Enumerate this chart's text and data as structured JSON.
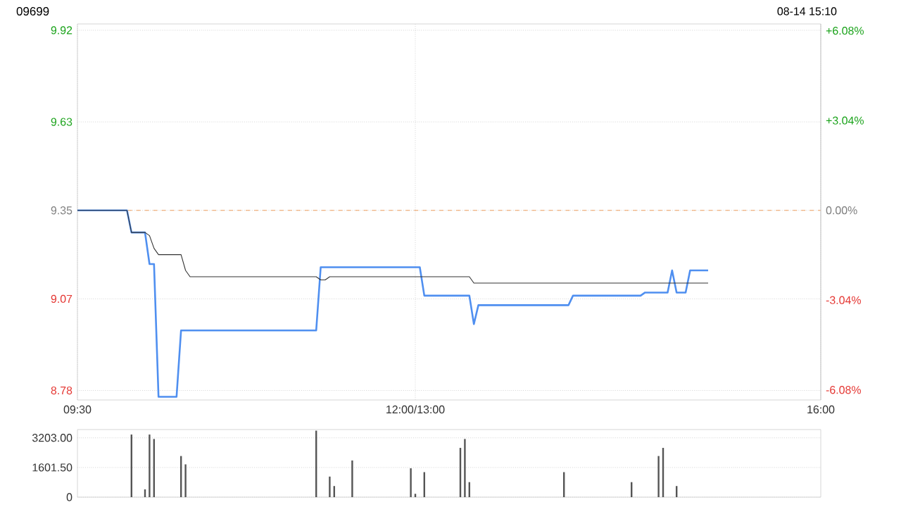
{
  "chart_data": [
    {
      "type": "line",
      "title": "09699",
      "subtitle": "08-14 15:10",
      "categories": [
        "09:30",
        null,
        null,
        null,
        null,
        null,
        null,
        null,
        null,
        null,
        null,
        null,
        null,
        null,
        null,
        null,
        null,
        null,
        null,
        null,
        null,
        null,
        null,
        null,
        null,
        null,
        null,
        null,
        null,
        null,
        null,
        null,
        null,
        null,
        null,
        null,
        null,
        null,
        null,
        null,
        null,
        null,
        null,
        null,
        null,
        null,
        null,
        null,
        null,
        null,
        null,
        null,
        null,
        null,
        null,
        null,
        null,
        null,
        null,
        null,
        null,
        null,
        null,
        null,
        null,
        null,
        null,
        null,
        null,
        null,
        null,
        null,
        null,
        null,
        null,
        "12:00/13:00",
        null,
        null,
        null,
        null,
        null,
        null,
        null,
        null,
        null,
        null,
        null,
        null,
        null,
        null,
        null,
        null,
        null,
        null,
        null,
        null,
        null,
        null,
        null,
        null,
        null,
        null,
        null,
        null,
        null,
        null,
        null,
        null,
        null,
        null,
        null,
        null,
        null,
        null,
        null,
        null,
        null,
        null,
        null,
        null,
        null,
        null,
        null,
        null,
        null,
        null,
        null,
        null,
        null,
        null,
        null,
        null,
        null,
        null,
        null,
        null,
        null,
        null,
        null,
        null,
        null,
        null,
        null,
        null,
        null,
        null,
        null,
        null,
        null,
        null,
        null,
        null,
        null,
        null,
        null,
        null,
        null,
        null,
        null,
        null,
        null,
        null,
        null,
        null,
        null,
        "16:00"
      ],
      "ylim": [
        8.75,
        9.94
      ],
      "yticks": [
        9.92,
        9.63,
        9.35,
        9.07,
        8.78
      ],
      "y2lim": [
        -6.42,
        6.31
      ],
      "y2ticks": [
        {
          "value": 6.08,
          "label": "+6.08%"
        },
        {
          "value": 3.04,
          "label": "+3.04%"
        },
        {
          "value": 0,
          "label": "0.00%"
        },
        {
          "value": -3.04,
          "label": "-3.04%"
        },
        {
          "value": -6.08,
          "label": "-6.08%"
        }
      ],
      "grid": true,
      "ref_lines": [
        {
          "axis": "y",
          "value": 9.35,
          "color": "#f0a060",
          "line_style": "dashed"
        }
      ],
      "series": [
        {
          "type": "line",
          "color": "#4f8ff0",
          "values": [
            9.35,
            9.35,
            9.35,
            9.35,
            9.35,
            9.35,
            9.35,
            9.35,
            9.35,
            9.35,
            9.35,
            9.35,
            9.28,
            9.28,
            9.28,
            9.28,
            9.18,
            9.18,
            8.76,
            8.76,
            8.76,
            8.76,
            8.76,
            8.97,
            8.97,
            8.97,
            8.97,
            8.97,
            8.97,
            8.97,
            8.97,
            8.97,
            8.97,
            8.97,
            8.97,
            8.97,
            8.97,
            8.97,
            8.97,
            8.97,
            8.97,
            8.97,
            8.97,
            8.97,
            8.97,
            8.97,
            8.97,
            8.97,
            8.97,
            8.97,
            8.97,
            8.97,
            8.97,
            8.97,
            9.17,
            9.17,
            9.17,
            9.17,
            9.17,
            9.17,
            9.17,
            9.17,
            9.17,
            9.17,
            9.17,
            9.17,
            9.17,
            9.17,
            9.17,
            9.17,
            9.17,
            9.17,
            9.17,
            9.17,
            9.17,
            9.17,
            9.17,
            9.08,
            9.08,
            9.08,
            9.08,
            9.08,
            9.08,
            9.08,
            9.08,
            9.08,
            9.08,
            9.08,
            8.99,
            9.05,
            9.05,
            9.05,
            9.05,
            9.05,
            9.05,
            9.05,
            9.05,
            9.05,
            9.05,
            9.05,
            9.05,
            9.05,
            9.05,
            9.05,
            9.05,
            9.05,
            9.05,
            9.05,
            9.05,
            9.05,
            9.08,
            9.08,
            9.08,
            9.08,
            9.08,
            9.08,
            9.08,
            9.08,
            9.08,
            9.08,
            9.08,
            9.08,
            9.08,
            9.08,
            9.08,
            9.08,
            9.09,
            9.09,
            9.09,
            9.09,
            9.09,
            9.09,
            9.16,
            9.09,
            9.09,
            9.09,
            9.16,
            9.16,
            9.16,
            9.16,
            9.16,
            null,
            null,
            null,
            null,
            null,
            null,
            null,
            null,
            null,
            null,
            null,
            null,
            null,
            null,
            null,
            null,
            null,
            null,
            null,
            null,
            null,
            null,
            null,
            null,
            null
          ]
        },
        {
          "type": "line",
          "color": "#333333",
          "values": [
            9.35,
            9.35,
            9.35,
            9.35,
            9.35,
            9.35,
            9.35,
            9.35,
            9.35,
            9.35,
            9.35,
            9.35,
            9.28,
            9.28,
            9.28,
            9.28,
            9.27,
            9.23,
            9.21,
            9.21,
            9.21,
            9.21,
            9.21,
            9.21,
            9.16,
            9.14,
            9.14,
            9.14,
            9.14,
            9.14,
            9.14,
            9.14,
            9.14,
            9.14,
            9.14,
            9.14,
            9.14,
            9.14,
            9.14,
            9.14,
            9.14,
            9.14,
            9.14,
            9.14,
            9.14,
            9.14,
            9.14,
            9.14,
            9.14,
            9.14,
            9.14,
            9.14,
            9.14,
            9.14,
            9.13,
            9.13,
            9.14,
            9.14,
            9.14,
            9.14,
            9.14,
            9.14,
            9.14,
            9.14,
            9.14,
            9.14,
            9.14,
            9.14,
            9.14,
            9.14,
            9.14,
            9.14,
            9.14,
            9.14,
            9.14,
            9.14,
            9.14,
            9.14,
            9.14,
            9.14,
            9.14,
            9.14,
            9.14,
            9.14,
            9.14,
            9.14,
            9.14,
            9.14,
            9.12,
            9.12,
            9.12,
            9.12,
            9.12,
            9.12,
            9.12,
            9.12,
            9.12,
            9.12,
            9.12,
            9.12,
            9.12,
            9.12,
            9.12,
            9.12,
            9.12,
            9.12,
            9.12,
            9.12,
            9.12,
            9.12,
            9.12,
            9.12,
            9.12,
            9.12,
            9.12,
            9.12,
            9.12,
            9.12,
            9.12,
            9.12,
            9.12,
            9.12,
            9.12,
            9.12,
            9.12,
            9.12,
            9.12,
            9.12,
            9.12,
            9.12,
            9.12,
            9.12,
            9.12,
            9.12,
            9.12,
            9.12,
            9.12,
            9.12,
            9.12,
            9.12,
            9.12,
            null,
            null,
            null,
            null,
            null,
            null,
            null,
            null,
            null,
            null,
            null,
            null,
            null,
            null,
            null,
            null,
            null,
            null,
            null,
            null,
            null,
            null,
            null,
            null,
            null
          ]
        }
      ]
    },
    {
      "type": "bar",
      "color": "#555555",
      "ylim": [
        0,
        3650
      ],
      "tick_labels": "y",
      "grid": "y",
      "categories": [
        null,
        null,
        null,
        null,
        null,
        null,
        null,
        null,
        null,
        null,
        null,
        null,
        null,
        null,
        null,
        null,
        null,
        null,
        null,
        null,
        null,
        null,
        null,
        null,
        null,
        null,
        null,
        null,
        null,
        null,
        null,
        null,
        null,
        null,
        null,
        null,
        null,
        null,
        null,
        null,
        null,
        null,
        null,
        null,
        null,
        null,
        null,
        null,
        null,
        null,
        null,
        null,
        null,
        null,
        null,
        null,
        null,
        null,
        null,
        null,
        null,
        null,
        null,
        null,
        null,
        null,
        null,
        null,
        null,
        null,
        null,
        null,
        null,
        null,
        null,
        null,
        null,
        null,
        null,
        null,
        null,
        null,
        null,
        null,
        null,
        null,
        null,
        null,
        null,
        null,
        null,
        null,
        null,
        null,
        null,
        null,
        null,
        null,
        null,
        null,
        null,
        null,
        null,
        null,
        null,
        null,
        null,
        null,
        null,
        null,
        null,
        null,
        null,
        null,
        null,
        null,
        null,
        null,
        null,
        null,
        null,
        null,
        null,
        null,
        null,
        null,
        null,
        null,
        null,
        null,
        null,
        null,
        null,
        null,
        null,
        null,
        null,
        null,
        null,
        null,
        null,
        null,
        null,
        null,
        null,
        null,
        null,
        null,
        null,
        null,
        null,
        null,
        null,
        null,
        null,
        null,
        null,
        null,
        null,
        null,
        null,
        null,
        null,
        null,
        null,
        null
      ],
      "yticks": [
        {
          "value": 3203,
          "label": "3203.00"
        },
        {
          "value": 1601.5,
          "label": "1601.50"
        },
        0
      ],
      "values": [
        0,
        0,
        0,
        0,
        0,
        0,
        0,
        0,
        0,
        0,
        0,
        0,
        3380,
        0,
        0,
        420,
        3380,
        3140,
        0,
        0,
        0,
        0,
        0,
        2220,
        1770,
        0,
        0,
        0,
        0,
        0,
        0,
        0,
        0,
        0,
        0,
        0,
        0,
        0,
        0,
        0,
        0,
        0,
        0,
        0,
        0,
        0,
        0,
        0,
        0,
        0,
        0,
        0,
        0,
        3590,
        0,
        0,
        1110,
        600,
        0,
        0,
        0,
        1980,
        0,
        0,
        0,
        0,
        0,
        0,
        0,
        0,
        0,
        0,
        0,
        0,
        1560,
        180,
        0,
        1350,
        0,
        0,
        0,
        0,
        0,
        0,
        0,
        2660,
        3140,
        810,
        0,
        0,
        0,
        0,
        0,
        0,
        0,
        0,
        0,
        0,
        0,
        0,
        0,
        0,
        0,
        0,
        0,
        0,
        0,
        0,
        1350,
        0,
        0,
        0,
        0,
        0,
        0,
        0,
        0,
        0,
        0,
        0,
        0,
        0,
        0,
        810,
        0,
        0,
        0,
        0,
        0,
        2220,
        2660,
        0,
        0,
        600,
        0,
        0,
        0,
        0,
        0,
        0,
        0,
        null,
        null,
        null,
        null,
        null,
        null,
        null,
        null,
        null,
        null,
        null,
        null,
        null,
        null,
        null,
        null,
        null,
        null,
        null,
        null,
        null,
        null,
        null,
        null,
        null
      ]
    }
  ]
}
